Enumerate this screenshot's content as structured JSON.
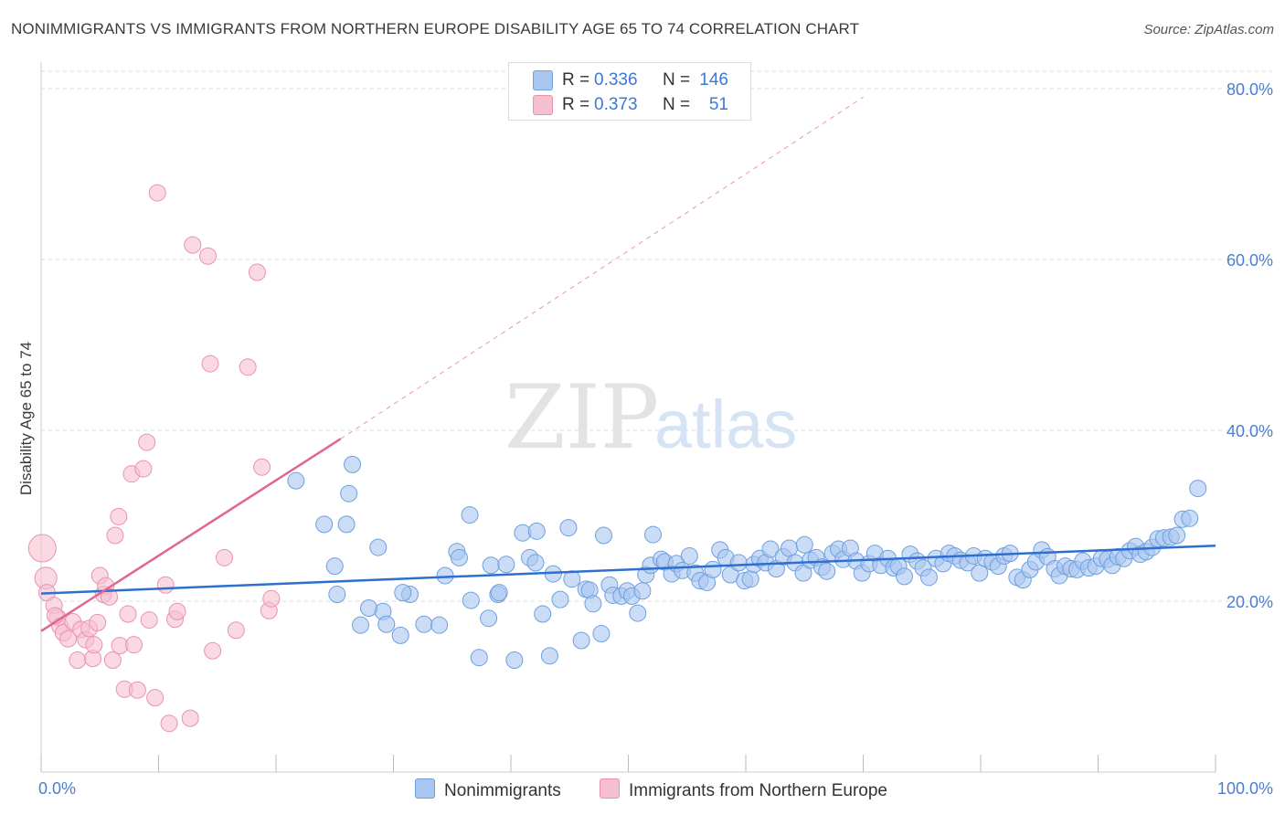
{
  "header": {
    "title": "NONIMMIGRANTS VS IMMIGRANTS FROM NORTHERN EUROPE DISABILITY AGE 65 TO 74 CORRELATION CHART",
    "source": "Source: ZipAtlas.com"
  },
  "watermark": {
    "zip": "ZIP",
    "atlas": "atlas"
  },
  "stats_legend": [
    {
      "r_label": "R =",
      "r_value": "0.336",
      "n_label": "N =",
      "n_value": "146"
    },
    {
      "r_label": "R =",
      "r_value": "0.373",
      "n_label": "N =",
      "n_value": "51"
    }
  ],
  "colors": {
    "blue_fill": "#a9c6f0",
    "blue_stroke": "#6e9fe0",
    "blue_line": "#2e6fcf",
    "pink_fill": "#f6bfd0",
    "pink_stroke": "#e893ae",
    "pink_line": "#e0668f",
    "tick_label": "#4a7fd0",
    "grid": "#dddddd"
  },
  "chart_data": {
    "type": "scatter",
    "title": "NONIMMIGRANTS VS IMMIGRANTS FROM NORTHERN EUROPE DISABILITY AGE 65 TO 74 CORRELATION CHART",
    "xlabel": "",
    "ylabel": "Disability Age 65 to 74",
    "xlim": [
      0,
      100
    ],
    "ylim": [
      0,
      80
    ],
    "y_ticks": [
      20,
      40,
      60,
      80
    ],
    "y_tick_labels": [
      "20.0%",
      "40.0%",
      "60.0%",
      "80.0%"
    ],
    "x_tick_labels": [
      "0.0%",
      "100.0%"
    ],
    "grid": true,
    "legend_position": "bottom",
    "series": [
      {
        "name": "Nonimmigrants",
        "color": "#a9c6f0",
        "trend": {
          "x0": 0,
          "y0": 20.9,
          "x1": 100,
          "y1": 26.5
        },
        "points": [
          [
            21.7,
            34.1
          ],
          [
            26.5,
            36.0
          ],
          [
            26.2,
            32.6
          ],
          [
            24.1,
            29.0
          ],
          [
            26.0,
            29.0
          ],
          [
            25.0,
            24.1
          ],
          [
            25.2,
            20.8
          ],
          [
            27.2,
            17.2
          ],
          [
            28.7,
            26.3
          ],
          [
            29.1,
            18.8
          ],
          [
            29.4,
            17.3
          ],
          [
            30.6,
            16.0
          ],
          [
            31.4,
            20.8
          ],
          [
            32.6,
            17.3
          ],
          [
            33.9,
            17.2
          ],
          [
            34.4,
            23.0
          ],
          [
            35.4,
            25.8
          ],
          [
            35.6,
            25.1
          ],
          [
            36.5,
            30.1
          ],
          [
            36.6,
            20.1
          ],
          [
            37.3,
            13.4
          ],
          [
            38.1,
            18.0
          ],
          [
            38.3,
            24.2
          ],
          [
            38.9,
            20.8
          ],
          [
            39.0,
            21.0
          ],
          [
            39.6,
            24.3
          ],
          [
            40.3,
            13.1
          ],
          [
            41.0,
            28.0
          ],
          [
            41.6,
            25.1
          ],
          [
            42.1,
            24.5
          ],
          [
            42.2,
            28.2
          ],
          [
            42.7,
            18.5
          ],
          [
            43.3,
            13.6
          ],
          [
            43.6,
            23.2
          ],
          [
            44.2,
            20.2
          ],
          [
            44.9,
            28.6
          ],
          [
            45.2,
            22.6
          ],
          [
            46.0,
            15.4
          ],
          [
            46.4,
            21.4
          ],
          [
            46.7,
            21.3
          ],
          [
            47.0,
            19.7
          ],
          [
            47.9,
            27.7
          ],
          [
            47.7,
            16.2
          ],
          [
            48.4,
            21.9
          ],
          [
            48.7,
            20.7
          ],
          [
            49.4,
            20.6
          ],
          [
            49.9,
            21.2
          ],
          [
            50.3,
            20.6
          ],
          [
            50.8,
            18.6
          ],
          [
            51.2,
            21.2
          ],
          [
            51.5,
            23.1
          ],
          [
            51.9,
            24.2
          ],
          [
            52.1,
            27.8
          ],
          [
            52.8,
            24.9
          ],
          [
            53.1,
            24.6
          ],
          [
            53.7,
            23.2
          ],
          [
            54.1,
            24.4
          ],
          [
            54.6,
            23.6
          ],
          [
            55.2,
            25.3
          ],
          [
            55.7,
            23.3
          ],
          [
            56.1,
            22.4
          ],
          [
            56.7,
            22.2
          ],
          [
            57.2,
            23.7
          ],
          [
            57.8,
            26.0
          ],
          [
            58.3,
            25.1
          ],
          [
            58.7,
            23.1
          ],
          [
            59.4,
            24.5
          ],
          [
            59.9,
            22.4
          ],
          [
            60.4,
            22.6
          ],
          [
            60.7,
            24.3
          ],
          [
            61.2,
            25.0
          ],
          [
            61.7,
            24.5
          ],
          [
            62.1,
            26.1
          ],
          [
            62.6,
            23.8
          ],
          [
            63.2,
            25.2
          ],
          [
            63.7,
            26.2
          ],
          [
            64.2,
            24.5
          ],
          [
            64.9,
            23.3
          ],
          [
            65.0,
            26.6
          ],
          [
            65.5,
            24.8
          ],
          [
            66.0,
            25.1
          ],
          [
            66.5,
            24.0
          ],
          [
            66.9,
            23.5
          ],
          [
            67.4,
            25.6
          ],
          [
            67.9,
            26.1
          ],
          [
            68.3,
            24.9
          ],
          [
            68.9,
            26.2
          ],
          [
            69.4,
            24.7
          ],
          [
            69.9,
            23.3
          ],
          [
            70.5,
            24.4
          ],
          [
            71.0,
            25.6
          ],
          [
            71.5,
            24.2
          ],
          [
            72.1,
            25.0
          ],
          [
            72.6,
            23.9
          ],
          [
            73.0,
            24.1
          ],
          [
            73.5,
            22.9
          ],
          [
            74.0,
            25.5
          ],
          [
            74.6,
            24.7
          ],
          [
            75.1,
            23.9
          ],
          [
            75.6,
            22.8
          ],
          [
            76.2,
            25.0
          ],
          [
            76.8,
            24.4
          ],
          [
            77.3,
            25.6
          ],
          [
            77.8,
            25.3
          ],
          [
            78.3,
            24.8
          ],
          [
            78.9,
            24.5
          ],
          [
            79.4,
            25.3
          ],
          [
            79.9,
            23.3
          ],
          [
            80.4,
            25.0
          ],
          [
            81.0,
            24.6
          ],
          [
            81.5,
            24.1
          ],
          [
            82.0,
            25.3
          ],
          [
            82.5,
            25.6
          ],
          [
            83.1,
            22.8
          ],
          [
            83.6,
            22.5
          ],
          [
            84.2,
            23.7
          ],
          [
            84.7,
            24.6
          ],
          [
            85.2,
            26.0
          ],
          [
            85.7,
            25.2
          ],
          [
            86.3,
            23.8
          ],
          [
            86.7,
            23.0
          ],
          [
            87.2,
            24.1
          ],
          [
            87.7,
            23.8
          ],
          [
            88.2,
            23.7
          ],
          [
            88.7,
            24.7
          ],
          [
            89.2,
            23.9
          ],
          [
            89.8,
            24.1
          ],
          [
            90.3,
            25.0
          ],
          [
            90.8,
            24.9
          ],
          [
            91.2,
            24.2
          ],
          [
            91.7,
            25.2
          ],
          [
            92.2,
            25.0
          ],
          [
            92.7,
            25.9
          ],
          [
            93.2,
            26.4
          ],
          [
            93.6,
            25.5
          ],
          [
            94.1,
            25.8
          ],
          [
            94.6,
            26.3
          ],
          [
            95.1,
            27.3
          ],
          [
            95.6,
            27.4
          ],
          [
            96.2,
            27.5
          ],
          [
            96.7,
            27.7
          ],
          [
            97.2,
            29.6
          ],
          [
            97.8,
            29.7
          ],
          [
            98.5,
            33.2
          ],
          [
            27.9,
            19.2
          ],
          [
            30.8,
            21.0
          ]
        ]
      },
      {
        "name": "Immigrants from Northern Europe",
        "color": "#f6bfd0",
        "trend": {
          "x0": 0,
          "y0": 16.5,
          "x1": 25.5,
          "y1": 39.0
        },
        "trend_extended": {
          "x0": 25.5,
          "y0": 39.0,
          "x1": 70,
          "y1": 79.0
        },
        "points": [
          [
            0.1,
            26.2
          ],
          [
            0.4,
            22.7
          ],
          [
            0.5,
            21.0
          ],
          [
            1.1,
            19.5
          ],
          [
            1.4,
            18.1
          ],
          [
            1.6,
            17.1
          ],
          [
            1.9,
            16.3
          ],
          [
            2.3,
            15.6
          ],
          [
            2.7,
            17.6
          ],
          [
            3.1,
            13.1
          ],
          [
            3.4,
            16.7
          ],
          [
            3.8,
            15.5
          ],
          [
            4.1,
            16.8
          ],
          [
            4.4,
            13.3
          ],
          [
            4.5,
            14.9
          ],
          [
            4.8,
            17.5
          ],
          [
            5.0,
            23.0
          ],
          [
            5.3,
            20.8
          ],
          [
            5.5,
            21.8
          ],
          [
            5.8,
            20.5
          ],
          [
            6.1,
            13.1
          ],
          [
            6.3,
            27.7
          ],
          [
            6.6,
            29.9
          ],
          [
            6.7,
            14.8
          ],
          [
            7.1,
            9.7
          ],
          [
            7.4,
            18.5
          ],
          [
            7.7,
            34.9
          ],
          [
            7.9,
            14.9
          ],
          [
            8.2,
            9.6
          ],
          [
            8.7,
            35.5
          ],
          [
            9.0,
            38.6
          ],
          [
            9.2,
            17.8
          ],
          [
            9.7,
            8.7
          ],
          [
            9.9,
            67.8
          ],
          [
            10.6,
            21.9
          ],
          [
            10.9,
            5.7
          ],
          [
            11.4,
            17.9
          ],
          [
            11.6,
            18.8
          ],
          [
            12.7,
            6.3
          ],
          [
            12.9,
            61.7
          ],
          [
            14.2,
            60.4
          ],
          [
            14.4,
            47.8
          ],
          [
            14.6,
            14.2
          ],
          [
            15.6,
            25.1
          ],
          [
            16.6,
            16.6
          ],
          [
            17.6,
            47.4
          ],
          [
            18.4,
            58.5
          ],
          [
            18.8,
            35.7
          ],
          [
            19.4,
            18.9
          ],
          [
            19.6,
            20.3
          ],
          [
            1.2,
            18.3
          ]
        ]
      }
    ]
  },
  "bottom_legend": [
    {
      "label": "Nonimmigrants"
    },
    {
      "label": "Immigrants from Northern Europe"
    }
  ]
}
